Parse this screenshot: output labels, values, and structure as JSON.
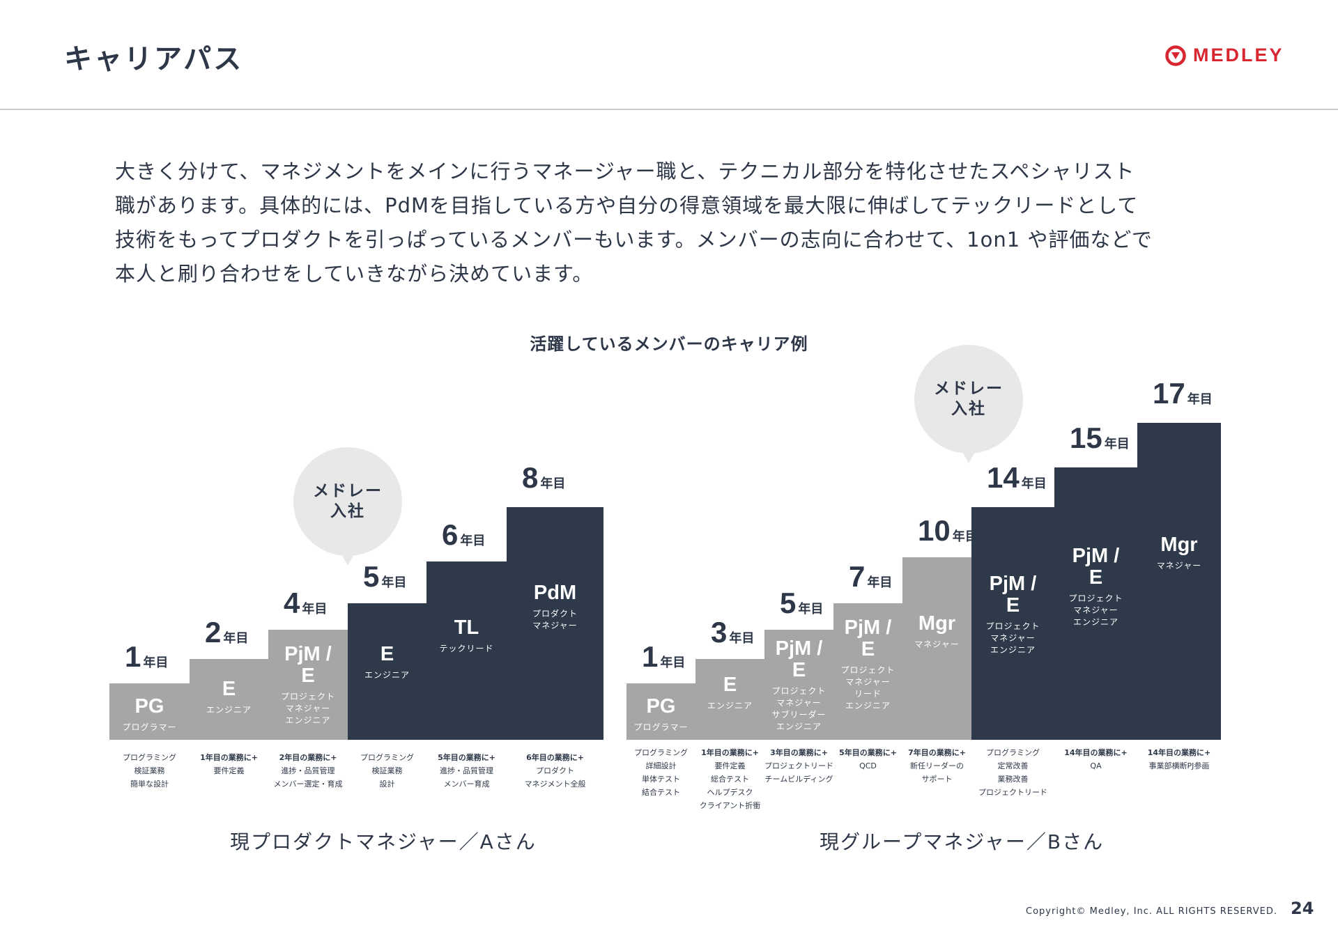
{
  "header": {
    "title": "キャリアパス",
    "brand": "MEDLEY",
    "brand_color": "#d7262f"
  },
  "intro": {
    "lines": [
      "大きく分けて、マネジメントをメインに行うマネージャー職と、テクニカル部分を特化させたスペシャリスト",
      "職があります。具体的には、PdMを目指している方や自分の得意領域を最大限に伸ばしてテックリードとして",
      "技術をもってプロダクトを引っぱっているメンバーもいます。メンバーの志向に合わせて、1on1 や評価などで",
      "本人と刷り合わせをしていきながら決めています。"
    ]
  },
  "subtitle": "活躍しているメンバーのキャリア例",
  "colors": {
    "light_step": "#a6a6a6",
    "dark_step": "#2e3949",
    "bubble": "#e8e8e8",
    "text": "#2d3748"
  },
  "careerA": {
    "caption": "現プロダクトマネジャー／Aさん",
    "join_bubble": [
      "メドレー",
      "入社"
    ],
    "steps": [
      {
        "year": "1",
        "unit": "年目",
        "code": [
          "PG"
        ],
        "role": [
          "プログラマー"
        ],
        "desc": [
          "プログラミング",
          "検証業務",
          "簡単な設計"
        ]
      },
      {
        "year": "2",
        "unit": "年目",
        "code": [
          "E"
        ],
        "role": [
          "エンジニア"
        ],
        "desc": [
          "1年目の業務に+",
          "要件定義"
        ]
      },
      {
        "year": "4",
        "unit": "年目",
        "code": [
          "PjM /",
          "E"
        ],
        "role": [
          "プロジェクト",
          "マネジャー",
          "エンジニア"
        ],
        "desc": [
          "2年目の業務に+",
          "進捗・品質管理",
          "メンバー選定・育成"
        ]
      },
      {
        "year": "5",
        "unit": "年目",
        "code": [
          "E"
        ],
        "role": [
          "エンジニア"
        ],
        "desc": [
          "プログラミング",
          "検証業務",
          "設計"
        ]
      },
      {
        "year": "6",
        "unit": "年目",
        "code": [
          "TL"
        ],
        "role": [
          "テックリード"
        ],
        "desc": [
          "5年目の業務に+",
          "進捗・品質管理",
          "メンバー育成"
        ]
      },
      {
        "year": "8",
        "unit": "年目",
        "code": [
          "PdM"
        ],
        "role": [
          "プロダクト",
          "マネジャー"
        ],
        "desc": [
          "6年目の業務に+",
          "プロダクト",
          "マネジメント全般"
        ]
      }
    ]
  },
  "careerB": {
    "caption": "現グループマネジャー／Bさん",
    "join_bubble": [
      "メドレー",
      "入社"
    ],
    "steps": [
      {
        "year": "1",
        "unit": "年目",
        "code": [
          "PG"
        ],
        "role": [
          "プログラマー"
        ],
        "desc": [
          "プログラミング",
          "詳細設計",
          "単体テスト",
          "結合テスト"
        ]
      },
      {
        "year": "3",
        "unit": "年目",
        "code": [
          "E"
        ],
        "role": [
          "エンジニア"
        ],
        "desc": [
          "1年目の業務に+",
          "要件定義",
          "総合テスト",
          "ヘルプデスク",
          "クライアント折衝"
        ]
      },
      {
        "year": "5",
        "unit": "年目",
        "code": [
          "PjM /",
          "E"
        ],
        "role": [
          "プロジェクト",
          "マネジャー",
          "サブリーダー",
          "エンジニア"
        ],
        "desc": [
          "3年目の業務に+",
          "プロジェクトリード",
          "チームビルディング"
        ]
      },
      {
        "year": "7",
        "unit": "年目",
        "code": [
          "PjM /",
          "E"
        ],
        "role": [
          "プロジェクト",
          "マネジャー",
          "リード",
          "エンジニア"
        ],
        "desc": [
          "5年目の業務に+",
          "QCD"
        ]
      },
      {
        "year": "10",
        "unit": "年目",
        "code": [
          "Mgr"
        ],
        "role": [
          "マネジャー"
        ],
        "desc": [
          "7年目の業務に+",
          "新任リーダーの",
          "サポート"
        ]
      },
      {
        "year": "14",
        "unit": "年目",
        "code": [
          "PjM /",
          "E"
        ],
        "role": [
          "プロジェクト",
          "マネジャー",
          "エンジニア"
        ],
        "desc": [
          "プログラミング",
          "定常改善",
          "業務改善",
          "プロジェクトリード"
        ]
      },
      {
        "year": "15",
        "unit": "年目",
        "code": [
          "PjM /",
          "E"
        ],
        "role": [
          "プロジェクト",
          "マネジャー",
          "エンジニア"
        ],
        "desc": [
          "14年目の業務に+",
          "QA"
        ]
      },
      {
        "year": "17",
        "unit": "年目",
        "code": [
          "Mgr"
        ],
        "role": [
          "マネジャー"
        ],
        "desc": [
          "14年目の業務に+",
          "事業部横断PJ参画"
        ]
      }
    ]
  },
  "footer": {
    "copyright": "Copyright© Medley, Inc. ALL RIGHTS RESERVED.",
    "page": "24"
  }
}
